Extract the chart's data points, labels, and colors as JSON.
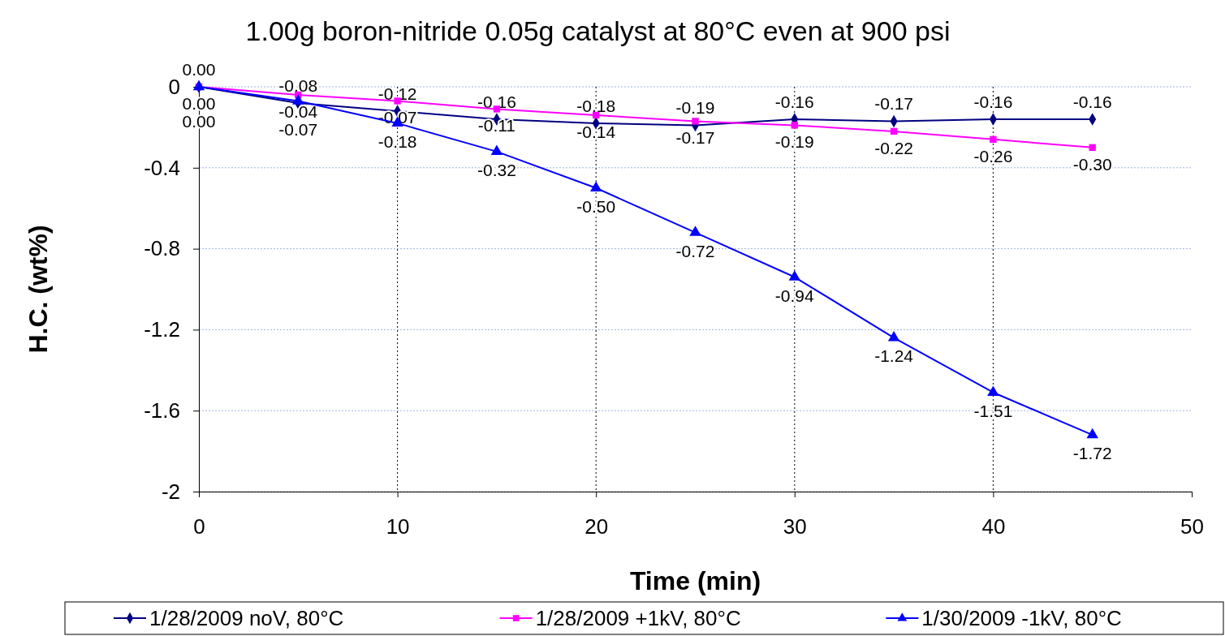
{
  "chart_data": {
    "type": "line",
    "title": "1.00g boron-nitride 0.05g catalyst at 80°C  even at 900 psi",
    "xlabel": "Time (min)",
    "ylabel": "H.C. (wt%)",
    "x": [
      0,
      5,
      10,
      15,
      20,
      25,
      30,
      35,
      40,
      45
    ],
    "series": [
      {
        "name": "1/28/2009 noV, 80°C",
        "color": "#000080",
        "marker": "diamond",
        "values": [
          0.0,
          -0.08,
          -0.12,
          -0.16,
          -0.18,
          -0.19,
          -0.16,
          -0.17,
          -0.16,
          -0.16
        ],
        "value_labels": [
          "0.00",
          "-0.08",
          "-0.12",
          "-0.16",
          "-0.18",
          "-0.19",
          "-0.16",
          "-0.17",
          "-0.16",
          "-0.16"
        ]
      },
      {
        "name": "1/28/2009 +1kV, 80°C",
        "color": "#ff00ff",
        "marker": "square",
        "values": [
          0.0,
          -0.04,
          -0.07,
          -0.11,
          -0.14,
          -0.17,
          -0.19,
          -0.22,
          -0.26,
          -0.3
        ],
        "value_labels": [
          "0.00",
          "-0.04",
          "-0.07",
          "-0.11",
          "-0.14",
          "-0.17",
          "-0.19",
          "-0.22",
          "-0.26",
          "-0.30"
        ]
      },
      {
        "name": "1/30/2009 -1kV, 80°C",
        "color": "#0000ff",
        "marker": "triangle",
        "values": [
          0.0,
          -0.07,
          -0.18,
          -0.32,
          -0.5,
          -0.72,
          -0.94,
          -1.24,
          -1.51,
          -1.72
        ],
        "value_labels": [
          "0.00",
          "-0.07",
          "-0.18",
          "-0.32",
          "-0.50",
          "-0.72",
          "-0.94",
          "-1.24",
          "-1.51",
          "-1.72"
        ]
      }
    ],
    "xlim": [
      0,
      50
    ],
    "xticks": [
      0,
      10,
      20,
      30,
      40,
      50
    ],
    "ylim": [
      -2,
      0
    ],
    "yticks": [
      {
        "value": 0,
        "label": "0"
      },
      -0.4,
      -0.8,
      -1.2,
      -1.6,
      -2
    ],
    "grid": true,
    "legend": "bottom"
  }
}
